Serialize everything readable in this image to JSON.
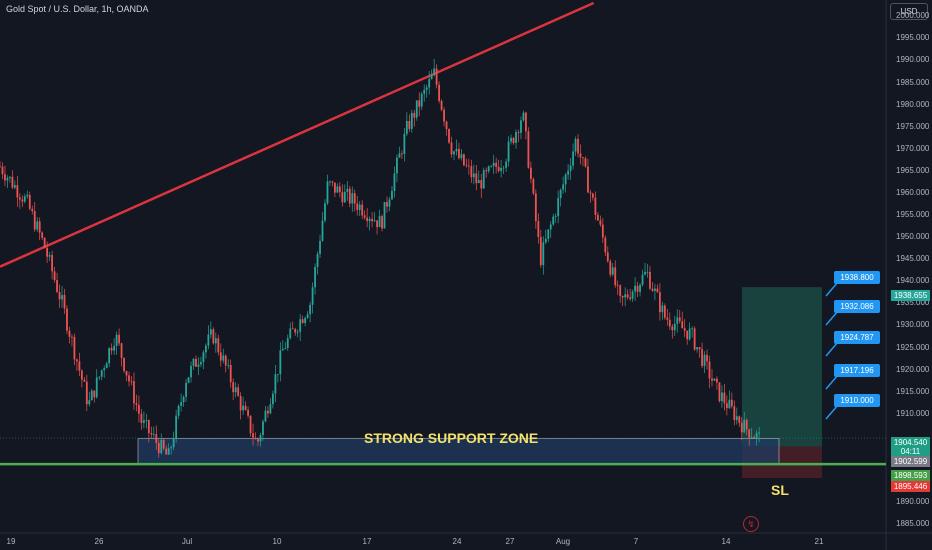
{
  "header": {
    "title": "Gold Spot / U.S. Dollar, 1h, OANDA"
  },
  "currency": "USD",
  "y_axis_labels": [
    "2000.000",
    "1995.000",
    "1990.000",
    "1985.000",
    "1980.000",
    "1975.000",
    "1970.000",
    "1965.000",
    "1960.000",
    "1955.000",
    "1950.000",
    "1945.000",
    "1940.000",
    "1935.000",
    "1930.000",
    "1925.000",
    "1920.000",
    "1915.000",
    "1910.000",
    "1890.000",
    "1885.000"
  ],
  "x_axis_labels": [
    "19",
    "26",
    "Jul",
    "10",
    "17",
    "24",
    "27",
    "Aug",
    "7",
    "14",
    "21"
  ],
  "price_tags": {
    "target_top": "1938.655",
    "current_price": "1904.540",
    "countdown": "04:11",
    "entry": "1902.599",
    "support_top": "1898.593",
    "stop_loss": "1895.446"
  },
  "targets": [
    "1938.800",
    "1932.086",
    "1924.787",
    "1917.196",
    "1910.000"
  ],
  "annotations": {
    "support_zone": "STRONG SUPPORT ZONE",
    "stop_loss": "SL"
  },
  "colors": {
    "background": "#131722",
    "trendline": "#d9343f",
    "support_line": "#4caf50",
    "support_zone_fill": "#1e3a5f",
    "profit_zone": "#1b4a44",
    "loss_zone": "#4a1f27",
    "target_badge": "#2196f3",
    "annotation_text": "#f5e06a"
  },
  "chart_data": {
    "type": "candlestick",
    "title": "Gold Spot / U.S. Dollar, 1h, OANDA",
    "y_unit": "USD",
    "ylim": [
      1883,
      2003
    ],
    "x_ticks": [
      "19",
      "26",
      "Jul",
      "10",
      "17",
      "24",
      "27",
      "Aug",
      "7",
      "14",
      "21"
    ],
    "price_path": [
      {
        "x": 0,
        "price": 1966
      },
      {
        "x": 0.03,
        "price": 1958
      },
      {
        "x": 0.05,
        "price": 1948
      },
      {
        "x": 0.07,
        "price": 1935
      },
      {
        "x": 0.1,
        "price": 1912
      },
      {
        "x": 0.13,
        "price": 1928
      },
      {
        "x": 0.16,
        "price": 1908
      },
      {
        "x": 0.19,
        "price": 1900
      },
      {
        "x": 0.21,
        "price": 1918
      },
      {
        "x": 0.24,
        "price": 1928
      },
      {
        "x": 0.27,
        "price": 1913
      },
      {
        "x": 0.29,
        "price": 1903
      },
      {
        "x": 0.32,
        "price": 1925
      },
      {
        "x": 0.35,
        "price": 1935
      },
      {
        "x": 0.37,
        "price": 1962
      },
      {
        "x": 0.4,
        "price": 1958
      },
      {
        "x": 0.43,
        "price": 1953
      },
      {
        "x": 0.46,
        "price": 1975
      },
      {
        "x": 0.49,
        "price": 1987
      },
      {
        "x": 0.51,
        "price": 1970
      },
      {
        "x": 0.54,
        "price": 1962
      },
      {
        "x": 0.57,
        "price": 1968
      },
      {
        "x": 0.59,
        "price": 1978
      },
      {
        "x": 0.61,
        "price": 1945
      },
      {
        "x": 0.63,
        "price": 1958
      },
      {
        "x": 0.65,
        "price": 1972
      },
      {
        "x": 0.68,
        "price": 1950
      },
      {
        "x": 0.7,
        "price": 1935
      },
      {
        "x": 0.73,
        "price": 1942
      },
      {
        "x": 0.75,
        "price": 1932
      },
      {
        "x": 0.78,
        "price": 1928
      },
      {
        "x": 0.81,
        "price": 1915
      },
      {
        "x": 0.84,
        "price": 1907
      },
      {
        "x": 0.857,
        "price": 1904.5
      }
    ],
    "trendline": [
      {
        "x": 0,
        "price": 1943.3
      },
      {
        "x": 0.67,
        "price": 2003
      }
    ],
    "support_zone": [
      1898.6,
      1904.4
    ],
    "horizontal_line": 1898.593,
    "position": {
      "entry": 1902.599,
      "take_profit": 1938.655,
      "stop_loss": 1895.446
    },
    "targets": [
      1938.8,
      1932.086,
      1924.787,
      1917.196,
      1910.0
    ]
  }
}
